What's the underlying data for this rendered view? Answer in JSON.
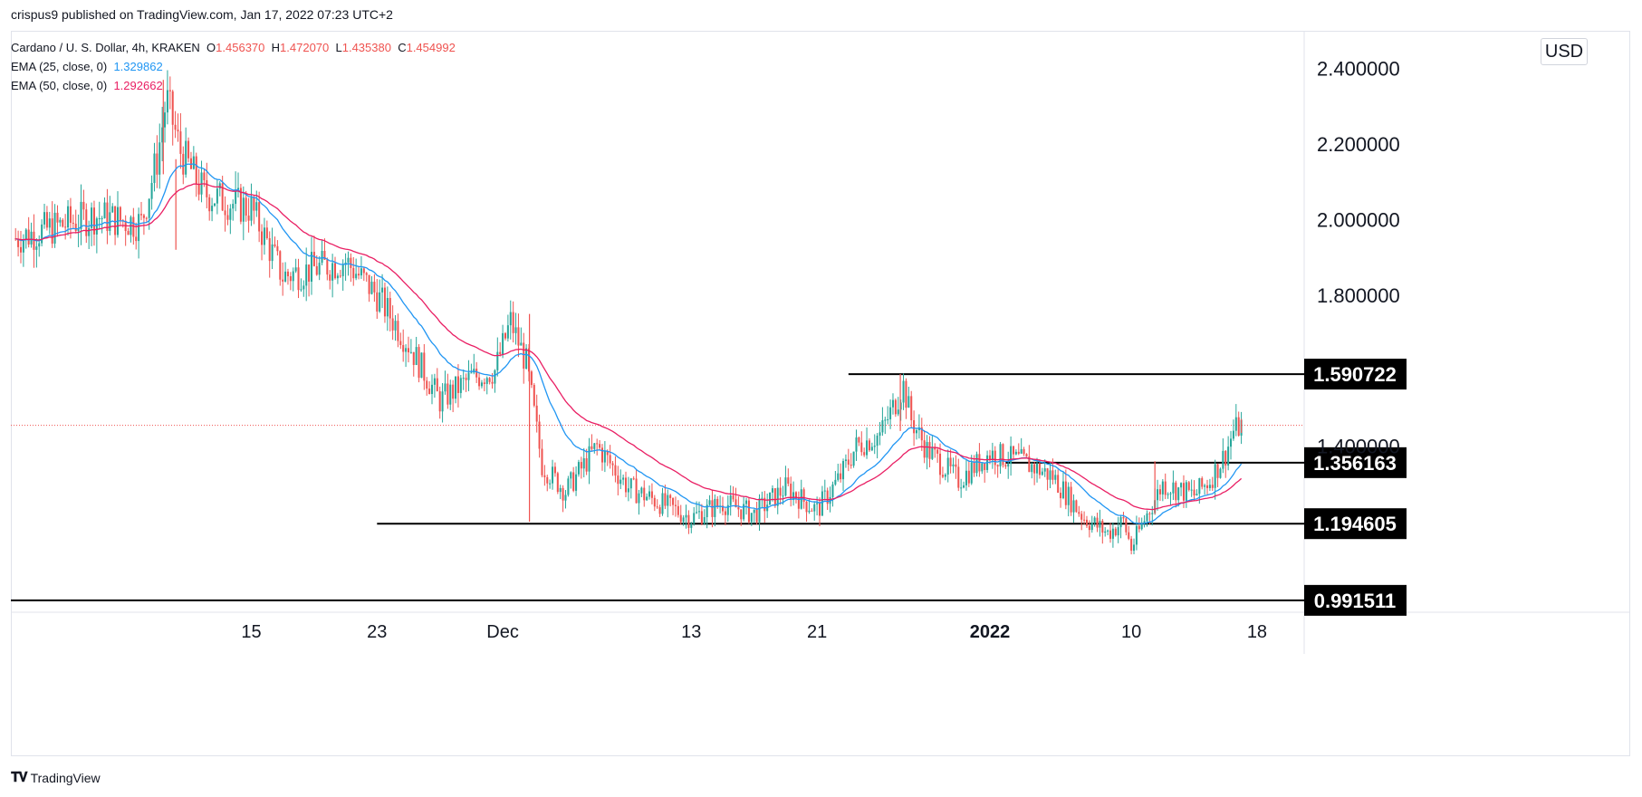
{
  "header": {
    "published_note": "crispus9 published on TradingView.com, Jan 17, 2022 07:23 UTC+2"
  },
  "legend": {
    "symbol": "Cardano / U. S. Dollar, 4h, KRAKEN",
    "o_label": "O",
    "o_value": "1.456370",
    "h_label": "H",
    "h_value": "1.472070",
    "l_label": "L",
    "l_value": "1.435380",
    "c_label": "C",
    "c_value": "1.454992",
    "ema25_label": "EMA (25, close, 0)",
    "ema25_value": "1.329862",
    "ema50_label": "EMA (50, close, 0)",
    "ema50_value": "1.292662"
  },
  "currency": "USD",
  "footer": {
    "brand": "TradingView"
  },
  "colors": {
    "up": "#26a69a",
    "down": "#ef5350",
    "ema25": "#2196f3",
    "ema50": "#e91e63",
    "level_line": "#000000",
    "last_price_line": "#ef5350"
  },
  "chart_data": {
    "type": "candlestick",
    "title": "Cardano / U. S. Dollar, 4h, KRAKEN",
    "ylim": [
      0.96,
      2.5
    ],
    "y_ticks": [
      "2.400000",
      "2.200000",
      "2.000000",
      "1.800000",
      "1.400000"
    ],
    "y_tick_values": [
      2.4,
      2.2,
      2.0,
      1.8,
      1.4
    ],
    "x_tick_labels": [
      "15",
      "23",
      "Dec",
      "13",
      "21",
      "2022",
      "10",
      "18"
    ],
    "x_tick_days": [
      15,
      23,
      31,
      43,
      51,
      62,
      71,
      79
    ],
    "x_tick_bold": [
      false,
      false,
      false,
      false,
      false,
      true,
      false,
      false
    ],
    "horizontal_levels": [
      {
        "value": 1.590722,
        "label": "1.590722",
        "from_day": 53,
        "to_day": 85
      },
      {
        "value": 1.356163,
        "label": "1.356163",
        "from_day": 63,
        "to_day": 85
      },
      {
        "value": 1.194605,
        "label": "1.194605",
        "from_day": 23,
        "to_day": 85
      },
      {
        "value": 0.991511,
        "label": "0.991511",
        "from_day": -1,
        "to_day": 85
      }
    ],
    "last_price": 1.454992,
    "price_anchor_days": [
      0,
      5,
      8,
      9,
      9.6,
      10.5,
      12,
      14,
      15,
      17,
      19,
      21,
      23,
      25,
      27,
      29,
      30.5,
      31.5,
      32.5,
      33.5,
      35,
      37,
      39,
      41,
      43,
      45,
      47,
      49,
      51,
      52.5,
      53.5,
      55,
      56.5,
      57,
      58,
      60,
      62,
      64,
      66,
      68,
      69.5,
      70.5,
      71,
      72,
      73,
      75,
      76,
      77,
      77.5,
      78
    ],
    "price_anchor_values": [
      1.95,
      2.01,
      1.99,
      2.16,
      2.32,
      2.18,
      2.07,
      2.04,
      2.03,
      1.85,
      1.87,
      1.89,
      1.8,
      1.67,
      1.52,
      1.58,
      1.6,
      1.73,
      1.62,
      1.35,
      1.28,
      1.4,
      1.29,
      1.25,
      1.21,
      1.25,
      1.22,
      1.29,
      1.23,
      1.32,
      1.4,
      1.43,
      1.56,
      1.47,
      1.39,
      1.31,
      1.38,
      1.36,
      1.32,
      1.21,
      1.17,
      1.2,
      1.13,
      1.22,
      1.3,
      1.27,
      1.31,
      1.38,
      1.44,
      1.455
    ],
    "wick_marks": [
      {
        "day": 9.4,
        "high": 2.37,
        "low": 2.12
      },
      {
        "day": 10.2,
        "high": 2.16,
        "low": 1.92
      },
      {
        "day": 32.7,
        "high": 1.75,
        "low": 1.2
      },
      {
        "day": 56.3,
        "high": 1.591,
        "low": 1.44
      },
      {
        "day": 72.5,
        "high": 1.36,
        "low": 1.22
      },
      {
        "day": 78,
        "high": 1.472,
        "low": 1.435
      }
    ]
  }
}
